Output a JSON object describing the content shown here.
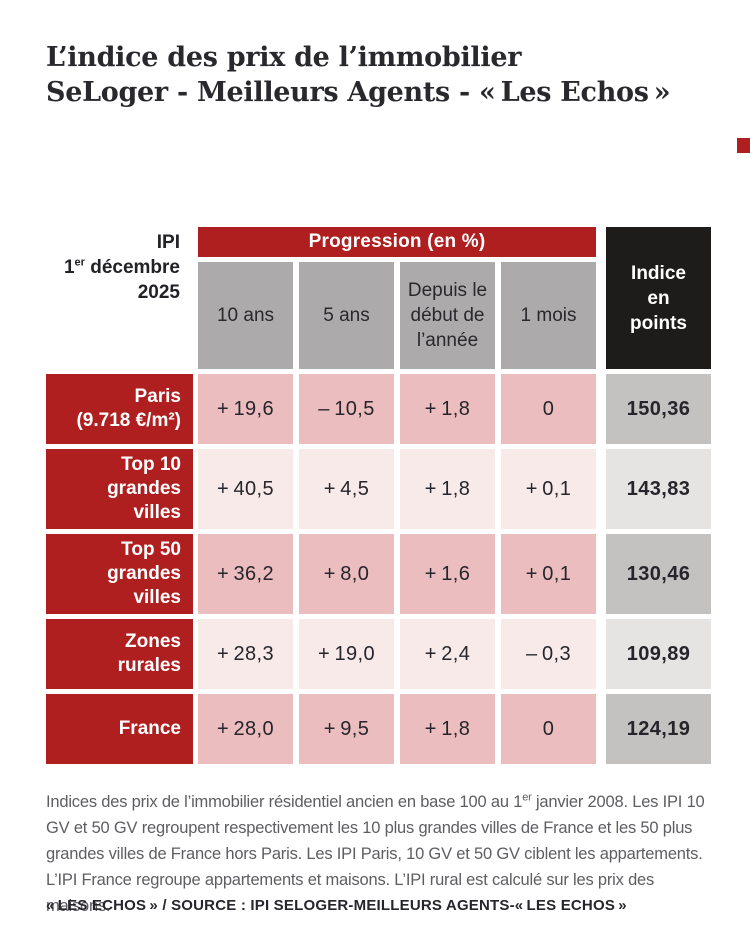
{
  "colors": {
    "accent_red": "#b01f20",
    "pink_dark": "#ecbdbe",
    "pink_light": "#f8eae9",
    "gray_column_header": "#acaaaa",
    "gray_index_dark": "#c4c2c1",
    "gray_index_light": "#e6e4e2",
    "black_box": "#1d1c1a",
    "text_dark": "#29282d"
  },
  "title": {
    "line1": "L’indice des prix de l’immobilier",
    "line2": "SeLoger - Meilleurs Agents - « Les Echos »"
  },
  "table": {
    "corner": {
      "line1": "IPI",
      "line2_num": "1",
      "line2_sup": "er",
      "line2_rest": " décembre",
      "line3": "2025"
    },
    "progression_header": "Progression (en %)",
    "columns": [
      "10 ans",
      "5 ans",
      "Depuis le\ndébut de\nl’année",
      "1 mois"
    ],
    "index_header": "Indice\nen\npoints",
    "rows": [
      {
        "label": "Paris\n(9.718 €/m²)",
        "values": [
          "+ 19,6",
          "– 10,5",
          "+ 1,8",
          "0"
        ],
        "index": "150,36"
      },
      {
        "label": "Top 10\ngrandes\nvilles",
        "values": [
          "+ 40,5",
          "+ 4,5",
          "+ 1,8",
          "+ 0,1"
        ],
        "index": "143,83"
      },
      {
        "label": "Top 50\ngrandes\nvilles",
        "values": [
          "+ 36,2",
          "+ 8,0",
          "+ 1,6",
          "+ 0,1"
        ],
        "index": "130,46"
      },
      {
        "label": "Zones\nrurales",
        "values": [
          "+ 28,3",
          "+ 19,0",
          "+ 2,4",
          "– 0,3"
        ],
        "index": "109,89"
      },
      {
        "label": "France",
        "values": [
          "+ 28,0",
          "+ 9,5",
          "+ 1,8",
          "0"
        ],
        "index": "124,19"
      }
    ]
  },
  "footnote": {
    "part1": "Indices des prix de l’immobilier résidentiel ancien en base 100 au 1",
    "sup": "er",
    "part2": " janvier 2008. Les IPI 10 GV et 50 GV regroupent respectivement les 10 plus grandes villes de France et les 50 plus grandes villes de France hors Paris. Les IPI Paris, 10 GV et 50 GV ciblent les appartements. L’IPI France regroupe appartements et maisons. L’IPI rural est calculé sur les prix des maisons."
  },
  "source": "« LES ECHOS » / SOURCE : IPI SELOGER-MEILLEURS AGENTS-« LES ECHOS »",
  "chart_data": {
    "type": "table",
    "title": "L’indice des prix de l’immobilier SeLoger - Meilleurs Agents - « Les Echos »",
    "as_of": "IPI 1er décembre 2025",
    "group_header": "Progression (en %)",
    "columns": [
      "10 ans",
      "5 ans",
      "Depuis le début de l’année",
      "1 mois",
      "Indice en points"
    ],
    "rows": [
      {
        "label": "Paris (9.718 €/m²)",
        "values": [
          19.6,
          -10.5,
          1.8,
          0,
          150.36
        ]
      },
      {
        "label": "Top 10 grandes villes",
        "values": [
          40.5,
          4.5,
          1.8,
          0.1,
          143.83
        ]
      },
      {
        "label": "Top 50 grandes villes",
        "values": [
          36.2,
          8.0,
          1.6,
          0.1,
          130.46
        ]
      },
      {
        "label": "Zones rurales",
        "values": [
          28.3,
          19.0,
          2.4,
          -0.3,
          109.89
        ]
      },
      {
        "label": "France",
        "values": [
          28.0,
          9.5,
          1.8,
          0,
          124.19
        ]
      }
    ]
  }
}
